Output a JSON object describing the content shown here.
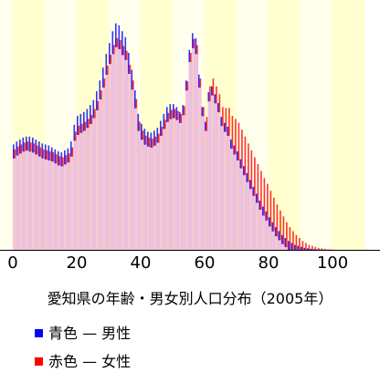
{
  "chart_data": {
    "type": "bar",
    "title": "愛知県の年齢・男女別人口分布（2005年）",
    "xlabel": "",
    "ylabel": "",
    "xlim": [
      0,
      110
    ],
    "x_ticks": [
      0,
      20,
      40,
      60,
      80,
      100
    ],
    "grid": false,
    "band_colors": [
      "#ffffd0",
      "#ffffec"
    ],
    "legend_position": "bottom-left",
    "series": [
      {
        "name": "青色 — 男性",
        "color": "#0000ff",
        "ages": [
          0,
          1,
          2,
          3,
          4,
          5,
          6,
          7,
          8,
          9,
          10,
          11,
          12,
          13,
          14,
          15,
          16,
          17,
          18,
          19,
          20,
          21,
          22,
          23,
          24,
          25,
          26,
          27,
          28,
          29,
          30,
          31,
          32,
          33,
          34,
          35,
          36,
          37,
          38,
          39,
          40,
          41,
          42,
          43,
          44,
          45,
          46,
          47,
          48,
          49,
          50,
          51,
          52,
          53,
          54,
          55,
          56,
          57,
          58,
          59,
          60,
          61,
          62,
          63,
          64,
          65,
          66,
          67,
          68,
          69,
          70,
          71,
          72,
          73,
          74,
          75,
          76,
          77,
          78,
          79,
          80,
          81,
          82,
          83,
          84,
          85,
          86,
          87,
          88,
          89,
          90,
          91,
          92,
          93,
          94,
          95,
          96,
          97,
          98,
          99,
          100
        ],
        "values": [
          1.07,
          1.1,
          1.12,
          1.14,
          1.15,
          1.15,
          1.14,
          1.12,
          1.1,
          1.08,
          1.07,
          1.06,
          1.04,
          1.02,
          1.0,
          0.99,
          1.01,
          1.03,
          1.1,
          1.27,
          1.36,
          1.38,
          1.4,
          1.43,
          1.47,
          1.52,
          1.61,
          1.72,
          1.85,
          1.99,
          2.1,
          2.22,
          2.3,
          2.28,
          2.22,
          2.16,
          2.0,
          1.83,
          1.62,
          1.38,
          1.28,
          1.23,
          1.2,
          1.19,
          1.21,
          1.24,
          1.31,
          1.38,
          1.45,
          1.48,
          1.48,
          1.45,
          1.4,
          1.47,
          1.72,
          2.03,
          2.2,
          2.15,
          1.78,
          1.45,
          1.3,
          1.6,
          1.66,
          1.58,
          1.49,
          1.35,
          1.29,
          1.25,
          1.12,
          1.06,
          1.0,
          0.92,
          0.85,
          0.78,
          0.71,
          0.64,
          0.57,
          0.5,
          0.44,
          0.39,
          0.33,
          0.28,
          0.23,
          0.19,
          0.15,
          0.12,
          0.09,
          0.07,
          0.05,
          0.04,
          0.03,
          0.02,
          0.015,
          0.01,
          0.007,
          0.005,
          0.003,
          0.002,
          0.001,
          0.001,
          0.0005
        ]
      },
      {
        "name": "赤色 — 女性",
        "color": "#ff0000",
        "ages": [
          0,
          1,
          2,
          3,
          4,
          5,
          6,
          7,
          8,
          9,
          10,
          11,
          12,
          13,
          14,
          15,
          16,
          17,
          18,
          19,
          20,
          21,
          22,
          23,
          24,
          25,
          26,
          27,
          28,
          29,
          30,
          31,
          32,
          33,
          34,
          35,
          36,
          37,
          38,
          39,
          40,
          41,
          42,
          43,
          44,
          45,
          46,
          47,
          48,
          49,
          50,
          51,
          52,
          53,
          54,
          55,
          56,
          57,
          58,
          59,
          60,
          61,
          62,
          63,
          64,
          65,
          66,
          67,
          68,
          69,
          70,
          71,
          72,
          73,
          74,
          75,
          76,
          77,
          78,
          79,
          80,
          81,
          82,
          83,
          84,
          85,
          86,
          87,
          88,
          89,
          90,
          91,
          92,
          93,
          94,
          95,
          96,
          97,
          98,
          99,
          100
        ],
        "values": [
          1.02,
          1.05,
          1.07,
          1.09,
          1.1,
          1.09,
          1.08,
          1.06,
          1.04,
          1.02,
          1.01,
          1.0,
          0.99,
          0.97,
          0.95,
          0.94,
          0.96,
          0.98,
          1.04,
          1.2,
          1.26,
          1.28,
          1.3,
          1.33,
          1.37,
          1.43,
          1.51,
          1.62,
          1.74,
          1.87,
          1.98,
          2.08,
          2.15,
          2.13,
          2.07,
          2.02,
          1.88,
          1.72,
          1.53,
          1.3,
          1.21,
          1.16,
          1.14,
          1.13,
          1.15,
          1.18,
          1.25,
          1.32,
          1.39,
          1.42,
          1.43,
          1.41,
          1.38,
          1.46,
          1.71,
          2.0,
          2.14,
          2.08,
          1.74,
          1.45,
          1.35,
          1.66,
          1.74,
          1.66,
          1.58,
          1.45,
          1.44,
          1.44,
          1.36,
          1.33,
          1.29,
          1.22,
          1.15,
          1.08,
          1.01,
          0.94,
          0.87,
          0.8,
          0.73,
          0.67,
          0.6,
          0.53,
          0.46,
          0.4,
          0.34,
          0.28,
          0.23,
          0.19,
          0.15,
          0.12,
          0.09,
          0.07,
          0.05,
          0.04,
          0.03,
          0.02,
          0.015,
          0.01,
          0.006,
          0.004,
          0.002
        ]
      }
    ]
  }
}
